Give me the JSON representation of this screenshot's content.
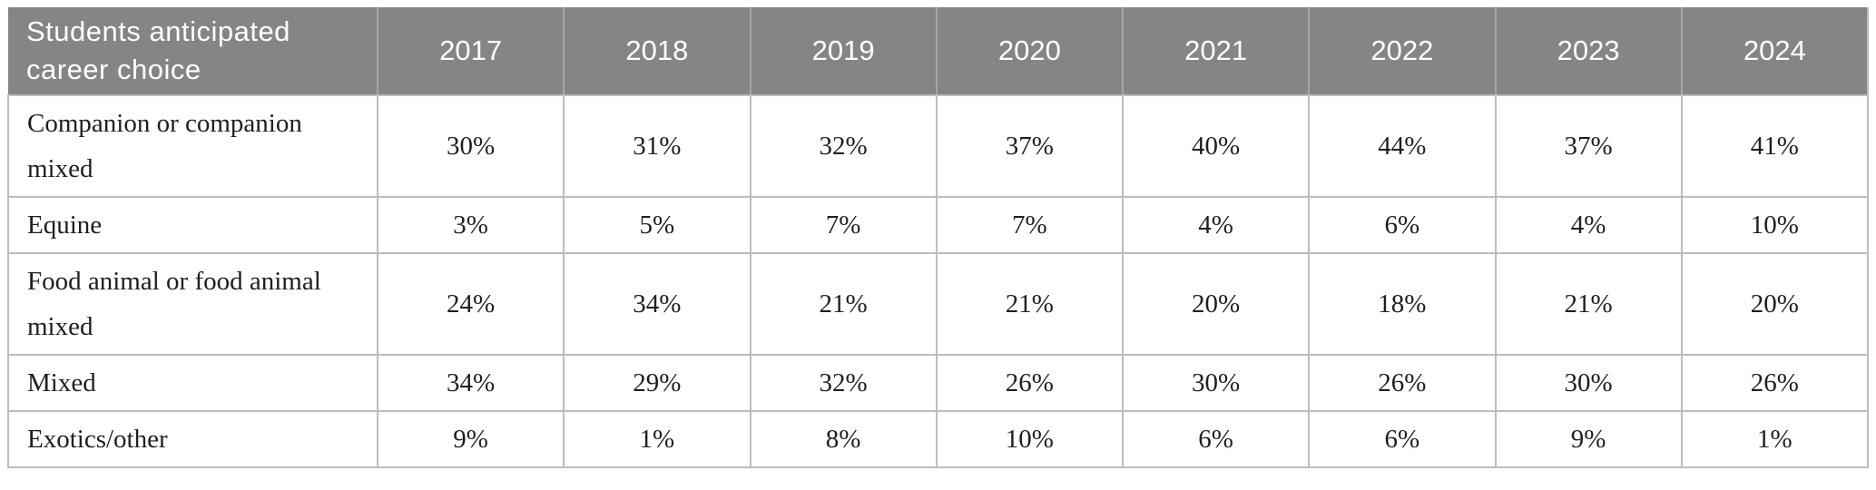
{
  "table": {
    "header_label": "Students anticipated career choice",
    "years": [
      "2017",
      "2018",
      "2019",
      "2020",
      "2021",
      "2022",
      "2023",
      "2024"
    ],
    "rows": [
      {
        "label": "Companion or companion mixed",
        "values": [
          "30%",
          "31%",
          "32%",
          "37%",
          "40%",
          "44%",
          "37%",
          "41%"
        ]
      },
      {
        "label": "Equine",
        "values": [
          "3%",
          "5%",
          "7%",
          "7%",
          "4%",
          "6%",
          "4%",
          "10%"
        ]
      },
      {
        "label": "Food animal or food animal mixed",
        "values": [
          "24%",
          "34%",
          "21%",
          "21%",
          "20%",
          "18%",
          "21%",
          "20%"
        ]
      },
      {
        "label": "Mixed",
        "values": [
          "34%",
          "29%",
          "32%",
          "26%",
          "30%",
          "26%",
          "30%",
          "26%"
        ]
      },
      {
        "label": "Exotics/other",
        "values": [
          "9%",
          "1%",
          "8%",
          "10%",
          "6%",
          "6%",
          "9%",
          "1%"
        ]
      }
    ]
  },
  "colors": {
    "header_background": "#858585",
    "header_text": "#ffffff",
    "header_divider": "#a6a6a6",
    "body_border": "#bdbdbd",
    "body_text": "#1f1f1f"
  },
  "chart_data": {
    "type": "table",
    "title": "Students anticipated career choice",
    "columns": [
      "Students anticipated career choice",
      "2017",
      "2018",
      "2019",
      "2020",
      "2021",
      "2022",
      "2023",
      "2024"
    ],
    "unit": "percent",
    "series": [
      {
        "name": "Companion or companion mixed",
        "values": [
          30,
          31,
          32,
          37,
          40,
          44,
          37,
          41
        ]
      },
      {
        "name": "Equine",
        "values": [
          3,
          5,
          7,
          7,
          4,
          6,
          4,
          10
        ]
      },
      {
        "name": "Food animal or food animal mixed",
        "values": [
          24,
          34,
          21,
          21,
          20,
          18,
          21,
          20
        ]
      },
      {
        "name": "Mixed",
        "values": [
          34,
          29,
          32,
          26,
          30,
          26,
          30,
          26
        ]
      },
      {
        "name": "Exotics/other",
        "values": [
          9,
          1,
          8,
          10,
          6,
          6,
          9,
          1
        ]
      }
    ],
    "layout": {
      "header_fill": "#858585",
      "grid": true,
      "first_column_align": "left",
      "value_align": "center"
    }
  }
}
